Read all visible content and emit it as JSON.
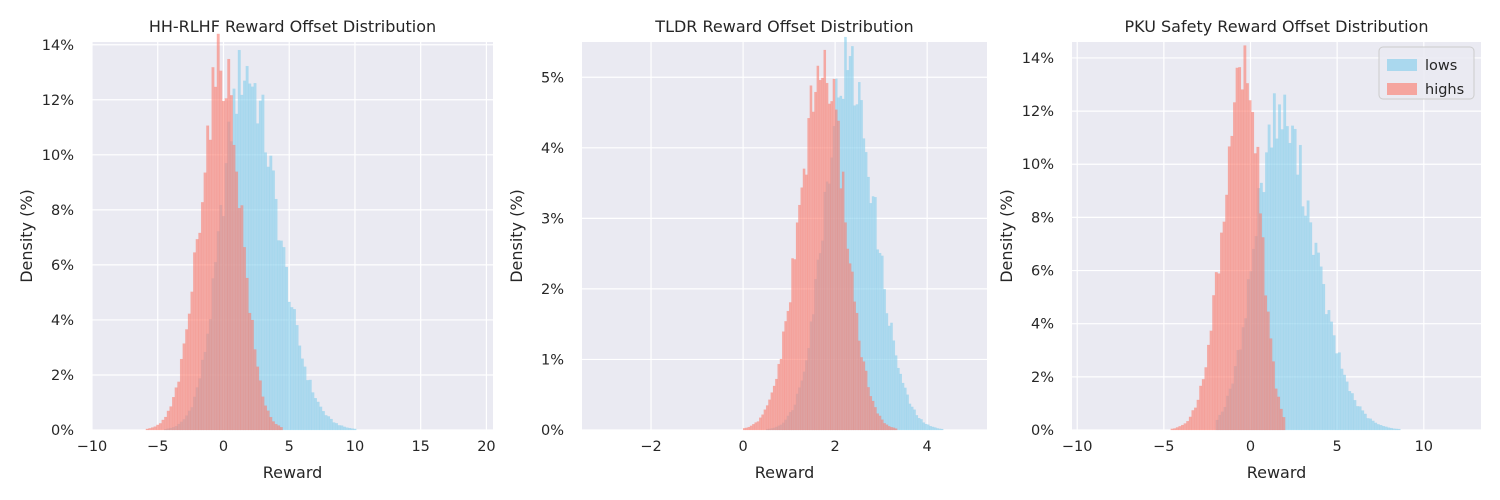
{
  "colors": {
    "lows": "#87ceeb",
    "highs": "#fa8072",
    "background": "#eaeaf2",
    "grid": "#ffffff"
  },
  "legend": {
    "entries": [
      "lows",
      "highs"
    ],
    "placement": "top-right",
    "panel": 2
  },
  "chart_data": [
    {
      "type": "histogram",
      "title": "HH-RLHF Reward Offset Distribution",
      "xlabel": "Reward",
      "ylabel": "Density (%)",
      "xlim": [
        -10,
        20.5
      ],
      "ylim": [
        0,
        14.1
      ],
      "xticks": [
        -10,
        -5,
        0,
        5,
        10,
        15,
        20
      ],
      "xtick_labels": [
        "−10",
        "−5",
        "0",
        "5",
        "10",
        "15",
        "20"
      ],
      "yticks": [
        0,
        2,
        4,
        6,
        8,
        10,
        12,
        14
      ],
      "ytick_labels": [
        "0%",
        "2%",
        "4%",
        "6%",
        "8%",
        "10%",
        "12%",
        "14%"
      ],
      "series": [
        {
          "name": "lows",
          "mean": 1.6,
          "sd": 2.1,
          "peak": 13.1,
          "range": [
            -4.5,
            11.5
          ],
          "skew": 0.35,
          "bin_width": 0.2
        },
        {
          "name": "highs",
          "mean": -0.1,
          "sd": 1.55,
          "peak": 13.3,
          "range": [
            -7.5,
            4.5
          ],
          "skew": -0.15,
          "bin_width": 0.2
        }
      ]
    },
    {
      "type": "histogram",
      "title": "TLDR Reward Offset Distribution",
      "xlabel": "Reward",
      "ylabel": "Density (%)",
      "xlim": [
        -3.5,
        5.3
      ],
      "ylim": [
        0,
        5.5
      ],
      "xticks": [
        -2,
        0,
        2,
        4
      ],
      "xtick_labels": [
        "−2",
        "0",
        "2",
        "4"
      ],
      "yticks": [
        0,
        1,
        2,
        3,
        4,
        5
      ],
      "ytick_labels": [
        "0%",
        "1%",
        "2%",
        "3%",
        "4%",
        "5%"
      ],
      "series": [
        {
          "name": "lows",
          "mean": 2.25,
          "sd": 0.55,
          "peak": 5.15,
          "range": [
            0.3,
            4.6
          ],
          "skew": 0.2,
          "bin_width": 0.05
        },
        {
          "name": "highs",
          "mean": 1.75,
          "sd": 0.5,
          "peak": 5.1,
          "range": [
            0.0,
            3.3
          ],
          "skew": -0.1,
          "bin_width": 0.05
        }
      ]
    },
    {
      "type": "histogram",
      "title": "PKU Safety Reward Offset Distribution",
      "xlabel": "Reward",
      "ylabel": "Density (%)",
      "xlim": [
        -10.3,
        13.3
      ],
      "ylim": [
        0,
        14.6
      ],
      "xticks": [
        -10,
        -5,
        0,
        5,
        10
      ],
      "xtick_labels": [
        "−10",
        "−5",
        "0",
        "5",
        "10"
      ],
      "yticks": [
        0,
        2,
        4,
        6,
        8,
        10,
        12,
        14
      ],
      "ytick_labels": [
        "0%",
        "2%",
        "4%",
        "6%",
        "8%",
        "10%",
        "12%",
        "14%"
      ],
      "series": [
        {
          "name": "lows",
          "mean": 1.6,
          "sd": 1.7,
          "peak": 11.9,
          "range": [
            -2.0,
            9.5
          ],
          "skew": 0.4,
          "bin_width": 0.15
        },
        {
          "name": "highs",
          "mean": -0.3,
          "sd": 1.05,
          "peak": 13.8,
          "range": [
            -5.5,
            2.0
          ],
          "skew": -0.35,
          "bin_width": 0.15
        }
      ]
    }
  ]
}
